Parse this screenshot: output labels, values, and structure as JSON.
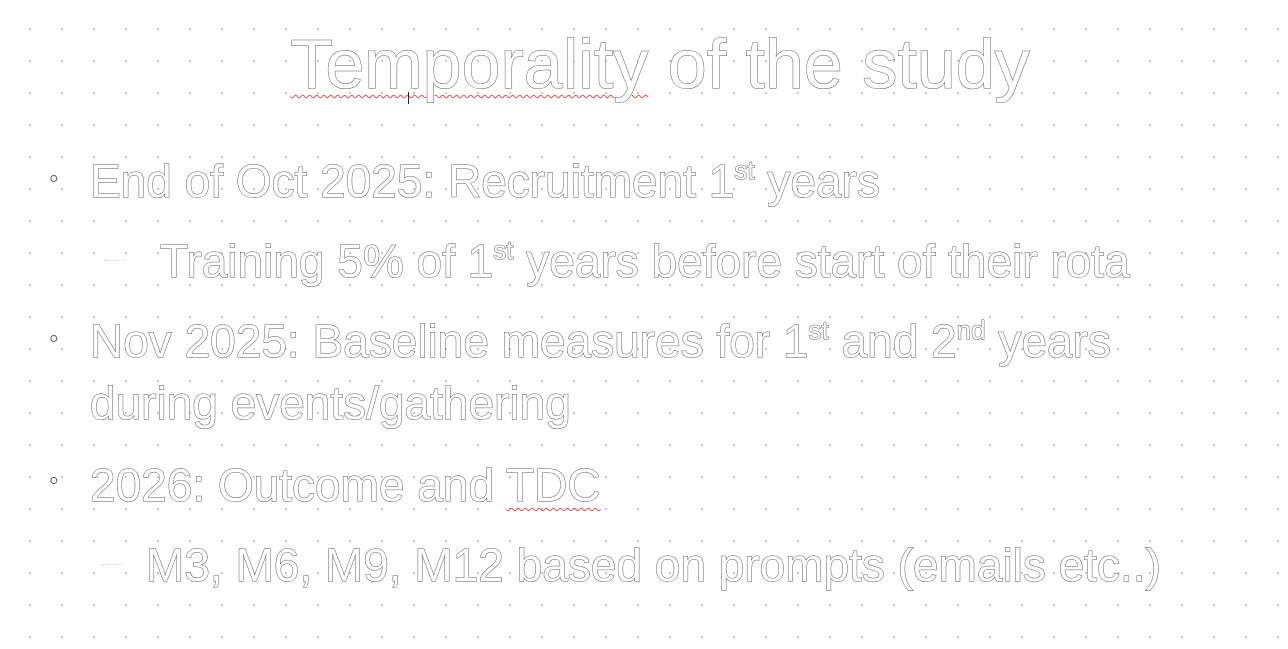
{
  "title": {
    "part1": "Temporality",
    "part2": " of the study"
  },
  "bullets": [
    {
      "level": 1,
      "marker": "•",
      "text": "End of Oct 2025: Recruitment 1",
      "sup": "st",
      "after": " years"
    },
    {
      "level": 2,
      "marker": "–",
      "text": "Training 5% of 1",
      "sup": "st",
      "after": " years before start of their rota"
    },
    {
      "level": 1,
      "marker": "•",
      "text": "Nov 2025: Baseline measures for 1",
      "sup": "st",
      "mid": " and 2",
      "sup2": "nd",
      "after": " years",
      "line2": "during events/gathering"
    },
    {
      "level": 1,
      "marker": "•",
      "text": "2026: Outcome and ",
      "flagged": "TDC"
    },
    {
      "level": 2,
      "marker": "–",
      "text": "M3, M6, M9, M12 based on prompts (emails etc..)"
    }
  ]
}
